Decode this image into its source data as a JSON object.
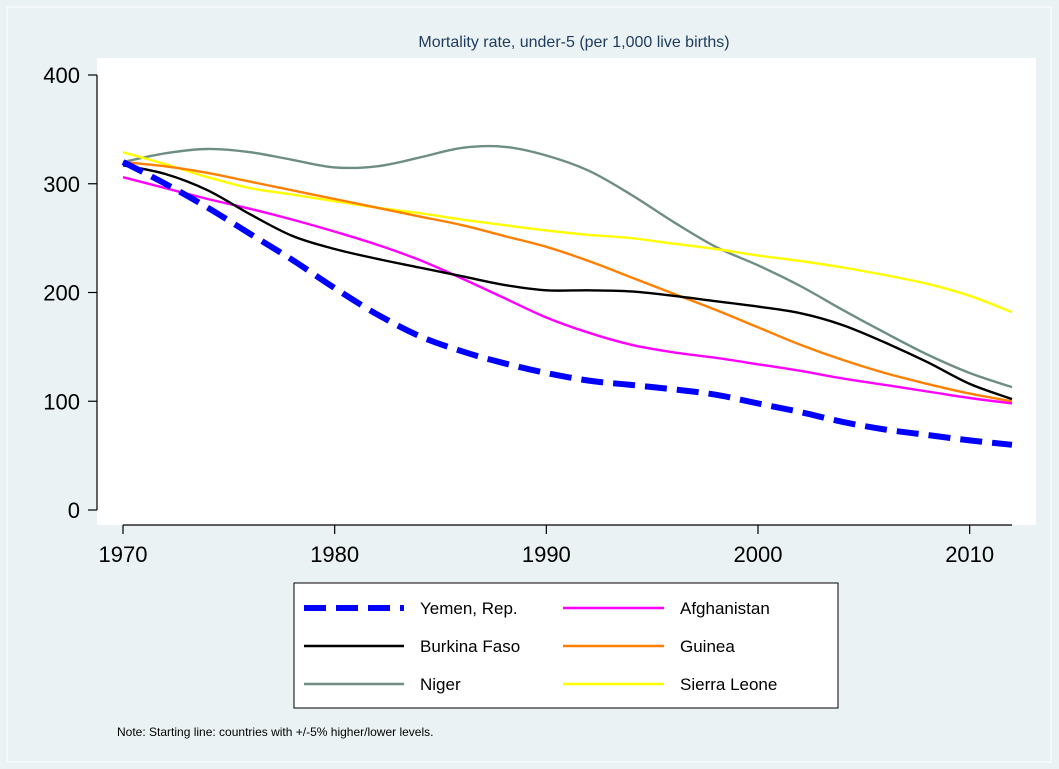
{
  "chart_data": {
    "type": "line",
    "title": "Mortality rate, under-5 (per 1,000 live births)",
    "xlabel": "",
    "ylabel": "",
    "xlim": [
      1970,
      2012
    ],
    "ylim": [
      0,
      400
    ],
    "x_ticks": [
      1970,
      1980,
      1990,
      2000,
      2010
    ],
    "y_ticks": [
      0,
      100,
      200,
      300,
      400
    ],
    "grid": false,
    "legend_position": "bottom",
    "note": "Note: Starting line: countries with +/-5% higher/lower levels.",
    "series": [
      {
        "name": "Yemen, Rep.",
        "color": "#0000ff",
        "style": "dashed-thick",
        "x": [
          1970,
          1972,
          1974,
          1976,
          1978,
          1980,
          1982,
          1984,
          1986,
          1988,
          1990,
          1992,
          1994,
          1996,
          1998,
          2000,
          2002,
          2004,
          2006,
          2008,
          2010,
          2012
        ],
        "y": [
          320,
          300,
          278,
          254,
          230,
          204,
          180,
          160,
          146,
          135,
          126,
          119,
          115,
          111,
          106,
          98,
          90,
          81,
          74,
          69,
          64,
          60
        ]
      },
      {
        "name": "Afghanistan",
        "color": "#ff00ff",
        "style": "solid",
        "x": [
          1970,
          1972,
          1974,
          1976,
          1978,
          1980,
          1982,
          1984,
          1986,
          1988,
          1990,
          1992,
          1994,
          1996,
          1998,
          2000,
          2002,
          2004,
          2006,
          2008,
          2010,
          2012
        ],
        "y": [
          306,
          296,
          286,
          277,
          267,
          256,
          244,
          230,
          213,
          195,
          177,
          163,
          152,
          145,
          140,
          134,
          128,
          121,
          115,
          109,
          103,
          98
        ]
      },
      {
        "name": "Burkina Faso",
        "color": "#000000",
        "style": "solid",
        "x": [
          1970,
          1972,
          1974,
          1976,
          1978,
          1980,
          1982,
          1984,
          1986,
          1988,
          1990,
          1992,
          1994,
          1996,
          1998,
          2000,
          2002,
          2004,
          2006,
          2008,
          2010,
          2012
        ],
        "y": [
          317,
          309,
          294,
          272,
          252,
          240,
          231,
          223,
          215,
          207,
          202,
          202,
          201,
          197,
          192,
          187,
          181,
          170,
          154,
          136,
          116,
          102
        ]
      },
      {
        "name": "Guinea",
        "color": "#ff8000",
        "style": "solid",
        "x": [
          1970,
          1972,
          1974,
          1976,
          1978,
          1980,
          1982,
          1984,
          1986,
          1988,
          1990,
          1992,
          1994,
          1996,
          1998,
          2000,
          2002,
          2004,
          2006,
          2008,
          2010,
          2012
        ],
        "y": [
          320,
          316,
          310,
          302,
          294,
          286,
          278,
          270,
          262,
          252,
          242,
          229,
          214,
          199,
          184,
          168,
          152,
          138,
          126,
          116,
          107,
          100
        ]
      },
      {
        "name": "Niger",
        "color": "#6e8e84",
        "style": "solid",
        "x": [
          1970,
          1972,
          1974,
          1976,
          1978,
          1980,
          1982,
          1984,
          1986,
          1988,
          1990,
          1992,
          1994,
          1996,
          1998,
          2000,
          2002,
          2004,
          2006,
          2008,
          2010,
          2012
        ],
        "y": [
          320,
          328,
          332,
          329,
          322,
          315,
          316,
          324,
          333,
          334,
          326,
          312,
          290,
          265,
          242,
          225,
          206,
          184,
          163,
          143,
          126,
          113
        ]
      },
      {
        "name": "Sierra Leone",
        "color": "#ffff00",
        "style": "solid",
        "x": [
          1970,
          1972,
          1974,
          1976,
          1978,
          1980,
          1982,
          1984,
          1986,
          1988,
          1990,
          1992,
          1994,
          1996,
          1998,
          2000,
          2002,
          2004,
          2006,
          2008,
          2010,
          2012
        ],
        "y": [
          329,
          318,
          306,
          296,
          290,
          284,
          278,
          273,
          267,
          262,
          257,
          253,
          250,
          245,
          240,
          234,
          229,
          223,
          216,
          208,
          197,
          182
        ]
      }
    ]
  }
}
